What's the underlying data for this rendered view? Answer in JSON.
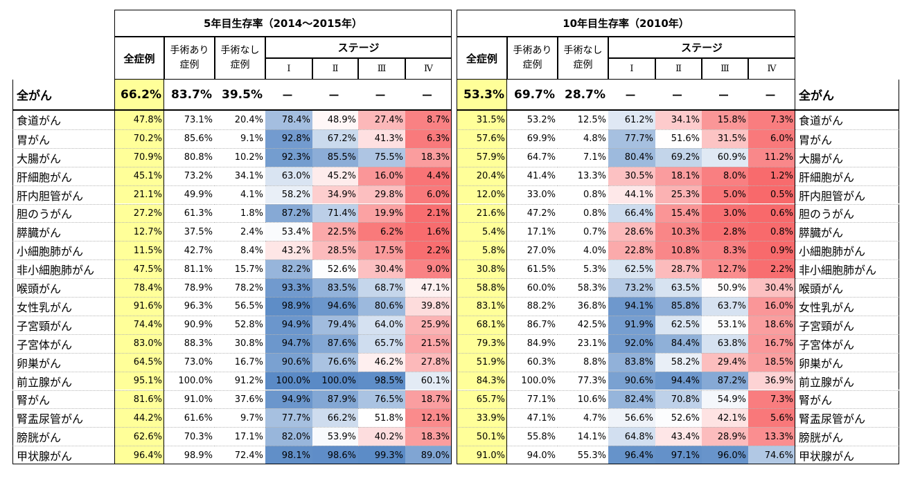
{
  "headers": {
    "group5": "5年目生存率（2014～2015年）",
    "group10": "10年目生存率（2010年）",
    "all_cases": "全症例",
    "surgery_yes": "手術あり症例",
    "surgery_no": "手術なし症例",
    "stage": "ステージ",
    "stages": [
      "Ⅰ",
      "Ⅱ",
      "Ⅲ",
      "Ⅳ"
    ]
  },
  "summary": {
    "label": "全がん",
    "y5": [
      "66.2%",
      "83.7%",
      "39.5%",
      "－",
      "－",
      "－",
      "－"
    ],
    "y10": [
      "53.3%",
      "69.7%",
      "28.7%",
      "－",
      "－",
      "－",
      "－"
    ]
  },
  "rows": [
    {
      "label": "食道がん",
      "y5": [
        47.8,
        73.1,
        20.4,
        78.4,
        48.9,
        27.4,
        8.7
      ],
      "y10": [
        31.5,
        53.2,
        12.5,
        61.2,
        34.1,
        15.8,
        7.3
      ]
    },
    {
      "label": "胃がん",
      "y5": [
        70.2,
        85.6,
        9.1,
        92.8,
        67.2,
        41.3,
        6.3
      ],
      "y10": [
        57.6,
        69.9,
        4.8,
        77.7,
        51.6,
        31.5,
        6.0
      ]
    },
    {
      "label": "大腸がん",
      "y5": [
        70.9,
        80.8,
        10.2,
        92.3,
        85.5,
        75.5,
        18.3
      ],
      "y10": [
        57.9,
        64.7,
        7.1,
        80.4,
        69.2,
        60.9,
        11.2
      ]
    },
    {
      "label": "肝細胞がん",
      "y5": [
        45.1,
        73.2,
        34.1,
        63.0,
        45.2,
        16.0,
        4.4
      ],
      "y10": [
        20.4,
        41.4,
        13.3,
        30.5,
        18.1,
        8.0,
        1.2
      ]
    },
    {
      "label": "肝内胆管がん",
      "y5": [
        21.1,
        49.9,
        4.1,
        58.2,
        34.9,
        29.8,
        6.0
      ],
      "y10": [
        12.0,
        33.0,
        0.8,
        44.1,
        25.3,
        5.0,
        0.5
      ]
    },
    {
      "label": "胆のうがん",
      "y5": [
        27.2,
        61.3,
        1.8,
        87.2,
        71.4,
        19.9,
        2.1
      ],
      "y10": [
        21.6,
        47.2,
        0.8,
        66.4,
        15.4,
        3.0,
        0.6
      ]
    },
    {
      "label": "膵臓がん",
      "y5": [
        12.7,
        37.5,
        2.4,
        53.4,
        22.5,
        6.2,
        1.6
      ],
      "y10": [
        5.4,
        17.1,
        0.7,
        28.6,
        10.3,
        2.8,
        0.8
      ]
    },
    {
      "label": "小細胞肺がん",
      "y5": [
        11.5,
        42.7,
        8.4,
        43.2,
        28.5,
        17.5,
        2.2
      ],
      "y10": [
        5.8,
        27.0,
        4.0,
        22.8,
        10.8,
        8.3,
        0.9
      ]
    },
    {
      "label": "非小細胞肺がん",
      "y5": [
        47.5,
        81.1,
        15.7,
        82.2,
        52.6,
        30.4,
        9.0
      ],
      "y10": [
        30.8,
        61.5,
        5.3,
        62.5,
        28.7,
        12.7,
        2.2
      ]
    },
    {
      "label": "喉頭がん",
      "y5": [
        78.4,
        78.9,
        78.2,
        93.3,
        83.5,
        68.7,
        47.1
      ],
      "y10": [
        58.8,
        60.0,
        58.3,
        73.2,
        63.5,
        50.9,
        30.4
      ]
    },
    {
      "label": "女性乳がん",
      "y5": [
        91.6,
        96.3,
        56.5,
        98.9,
        94.6,
        80.6,
        39.8
      ],
      "y10": [
        83.1,
        88.2,
        36.8,
        94.1,
        85.8,
        63.7,
        16.0
      ]
    },
    {
      "label": "子宮頸がん",
      "y5": [
        74.4,
        90.9,
        52.8,
        94.9,
        79.4,
        64.0,
        25.9
      ],
      "y10": [
        68.1,
        86.7,
        42.5,
        91.9,
        62.5,
        53.1,
        18.6
      ]
    },
    {
      "label": "子宮体がん",
      "y5": [
        83.0,
        88.3,
        30.8,
        94.7,
        87.6,
        65.7,
        21.5
      ],
      "y10": [
        79.3,
        84.9,
        23.1,
        92.0,
        84.4,
        63.8,
        16.7
      ]
    },
    {
      "label": "卵巣がん",
      "y5": [
        64.5,
        73.0,
        16.7,
        90.6,
        76.6,
        46.2,
        27.8
      ],
      "y10": [
        51.9,
        60.3,
        8.8,
        83.8,
        58.2,
        29.4,
        18.5
      ]
    },
    {
      "label": "前立腺がん",
      "y5": [
        95.1,
        100.0,
        91.2,
        100.0,
        100.0,
        98.5,
        60.1
      ],
      "y10": [
        84.3,
        100.0,
        77.3,
        90.6,
        94.4,
        87.2,
        36.9
      ]
    },
    {
      "label": "腎がん",
      "y5": [
        81.6,
        91.0,
        37.6,
        94.9,
        87.9,
        76.5,
        18.7
      ],
      "y10": [
        65.7,
        77.1,
        10.6,
        82.4,
        70.8,
        54.9,
        7.3
      ]
    },
    {
      "label": "腎盂尿管がん",
      "y5": [
        44.2,
        61.6,
        9.7,
        77.7,
        66.2,
        51.8,
        12.1
      ],
      "y10": [
        33.9,
        47.1,
        4.7,
        56.6,
        52.6,
        42.1,
        5.6
      ]
    },
    {
      "label": "膀胱がん",
      "y5": [
        62.6,
        70.3,
        17.1,
        82.0,
        53.9,
        40.2,
        18.3
      ],
      "y10": [
        50.1,
        55.8,
        14.1,
        64.8,
        43.4,
        28.9,
        13.3
      ]
    },
    {
      "label": "甲状腺がん",
      "y5": [
        96.4,
        98.9,
        72.4,
        98.1,
        98.6,
        99.3,
        89.0
      ],
      "y10": [
        91.0,
        94.0,
        55.3,
        96.4,
        97.1,
        96.0,
        74.6
      ]
    }
  ],
  "colors": {
    "all_cases_fill": "#ffff99",
    "scale_low": "#f8696b",
    "scale_mid": "#ffffff",
    "scale_high": "#5a8ac6",
    "grid": "#000000"
  }
}
